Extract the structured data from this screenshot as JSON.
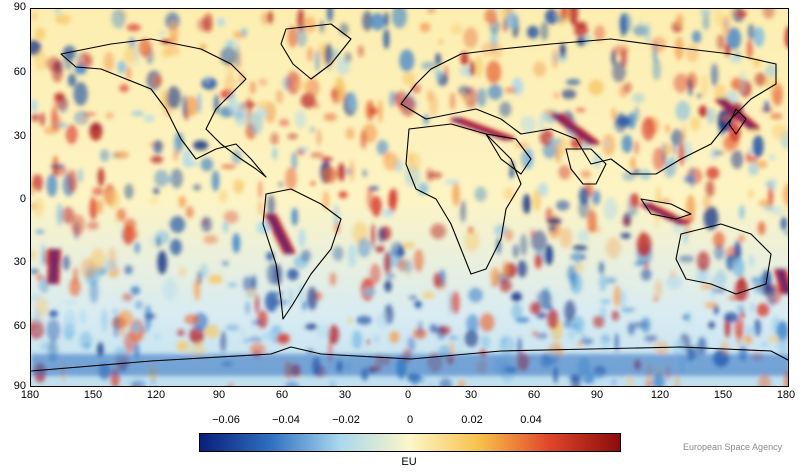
{
  "map": {
    "lat_labels": [
      "90",
      "60",
      "30",
      "0",
      "30",
      "60",
      "90"
    ],
    "lon_labels": [
      "180",
      "150",
      "120",
      "90",
      "60",
      "30",
      "0",
      "30",
      "60",
      "90",
      "120",
      "150",
      "180"
    ]
  },
  "colorbar": {
    "ticks": [
      "−0.06",
      "−0.04",
      "−0.02",
      "0",
      "0.02",
      "0.04"
    ],
    "unit_label": "EU",
    "range": [
      -0.07,
      0.07
    ],
    "colors": [
      "#0a1f7a",
      "#2f6fc0",
      "#a9d8ee",
      "#fdf6c8",
      "#f7c04a",
      "#e0452a",
      "#8a0c0c"
    ]
  },
  "credit": "European Space Agency"
}
